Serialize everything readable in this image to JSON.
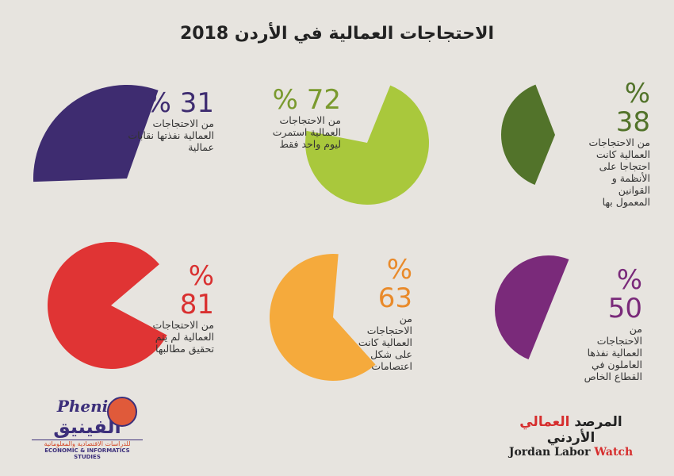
{
  "title": "الاحتجاجات العمالية في الأردن 2018",
  "chart_data": {
    "type": "pie",
    "title": "الاحتجاجات العمالية في الأردن 2018",
    "items": [
      {
        "value": 31,
        "label": "% 31",
        "text": "من الاحتجاجات العمالية نفذتها نقابات عمالية",
        "color": "#3e2c70"
      },
      {
        "value": 72,
        "label": "% 72",
        "text": "من الاحتجاجات العمالية استمرت ليوم واحد فقط",
        "color": "#a9c83c"
      },
      {
        "value": 38,
        "label": "% 38",
        "text": "من الاحتجاجات العمالية كانت احتجاجا على الأنظمة و القوانين المعمول بها",
        "color": "#52732a"
      },
      {
        "value": 81,
        "label": "% 81",
        "text": "من الاحتجاجات العمالية لم يتم تحقيق مطالبها",
        "color": "#e03434"
      },
      {
        "value": 63,
        "label": "% 63",
        "text": "من الاحتجاجات العمالية كانت على شكل اعتصامات",
        "color": "#f5aa3c"
      },
      {
        "value": 50,
        "label": "% 50",
        "text": "من الاحتجاجات العمالية نفذها العاملون في القطاع الخاص",
        "color": "#7a2a7a"
      }
    ]
  },
  "logos": {
    "phenix_en": "Phenix",
    "phenix_ar": "الفينيق",
    "phenix_sub_ar": "للدراسات الاقتصادية والمعلوماتية",
    "phenix_sub_en": "ECONOMIC & INFORMATICS STUDIES",
    "jlw_ar_1": "المرصد",
    "jlw_ar_2": "العمالي",
    "jlw_ar_3": "الأردني",
    "jlw_en_1": "Jordan Labor",
    "jlw_en_2": "Watch"
  }
}
